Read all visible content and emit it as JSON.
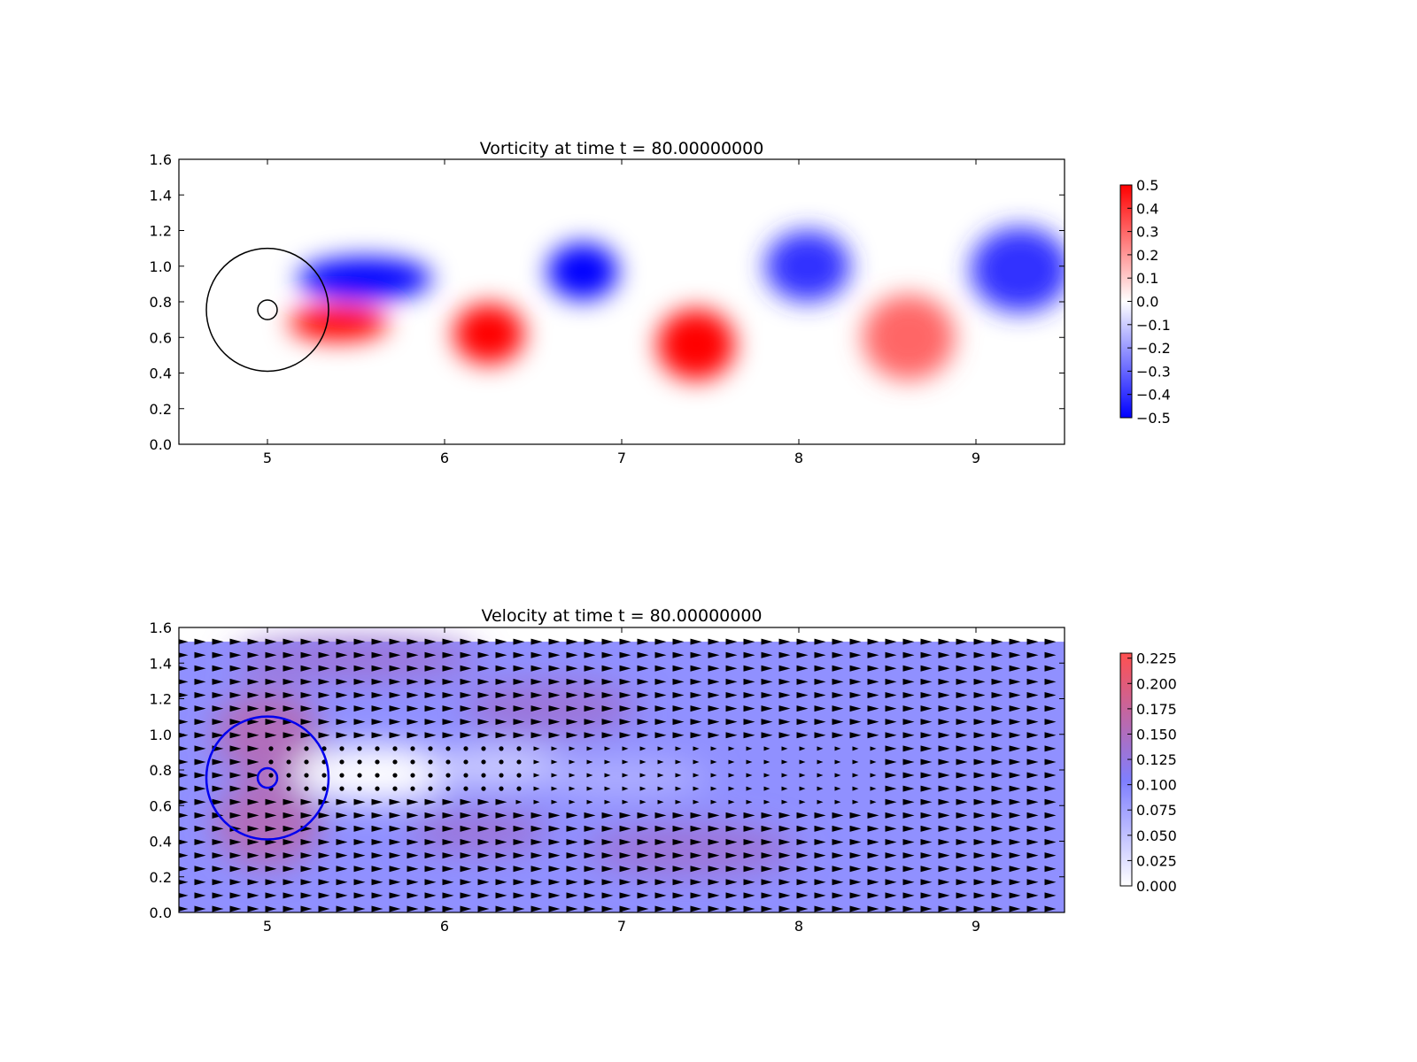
{
  "chart_data": [
    {
      "type": "heatmap",
      "title": "Vorticity at time t =    80.00000000",
      "xlim": [
        4.5,
        9.5
      ],
      "ylim": [
        0.0,
        1.6
      ],
      "xticks": [
        5,
        6,
        7,
        8,
        9
      ],
      "xtick_labels": [
        "5",
        "6",
        "7",
        "8",
        "9"
      ],
      "yticks": [
        0.0,
        0.2,
        0.4,
        0.6,
        0.8,
        1.0,
        1.2,
        1.4,
        1.6
      ],
      "ytick_labels": [
        "0.0",
        "0.2",
        "0.4",
        "0.6",
        "0.8",
        "1.0",
        "1.2",
        "1.4",
        "1.6"
      ],
      "colormap": [
        "#0000ff",
        "#ffffff",
        "#ff0000"
      ],
      "color_range": [
        -0.5,
        0.5
      ],
      "colorbar_ticks": [
        0.5,
        0.4,
        0.3,
        0.2,
        0.1,
        0.0,
        -0.1,
        -0.2,
        -0.3,
        -0.4,
        -0.5
      ],
      "colorbar_labels": [
        "0.5",
        "0.4",
        "0.3",
        "0.2",
        "0.1",
        "0.0",
        "−0.1",
        "−0.2",
        "−0.3",
        "−0.4",
        "−0.5"
      ],
      "vortices": [
        {
          "x": 5.55,
          "y": 0.93,
          "rx": 0.38,
          "ry": 0.12,
          "value": -0.6
        },
        {
          "x": 5.4,
          "y": 0.68,
          "rx": 0.28,
          "ry": 0.1,
          "value": 0.6
        },
        {
          "x": 6.78,
          "y": 0.97,
          "rx": 0.2,
          "ry": 0.16,
          "value": -0.6
        },
        {
          "x": 6.25,
          "y": 0.62,
          "rx": 0.2,
          "ry": 0.17,
          "value": 0.6
        },
        {
          "x": 7.42,
          "y": 0.56,
          "rx": 0.22,
          "ry": 0.2,
          "value": 0.5
        },
        {
          "x": 8.05,
          "y": 1.0,
          "rx": 0.24,
          "ry": 0.2,
          "value": -0.4
        },
        {
          "x": 8.62,
          "y": 0.6,
          "rx": 0.26,
          "ry": 0.24,
          "value": 0.3
        },
        {
          "x": 9.25,
          "y": 0.98,
          "rx": 0.28,
          "ry": 0.24,
          "value": -0.4
        }
      ],
      "circles": [
        {
          "x": 5.0,
          "y": 0.755,
          "r": 0.345,
          "color": "#000000"
        },
        {
          "x": 5.0,
          "y": 0.755,
          "r": 0.055,
          "color": "#000000"
        }
      ]
    },
    {
      "type": "heatmap",
      "title": "Velocity at time t =    80.00000000",
      "xlim": [
        4.5,
        9.5
      ],
      "ylim": [
        0.0,
        1.6
      ],
      "field_ylim": [
        0.0,
        1.52
      ],
      "xticks": [
        5,
        6,
        7,
        8,
        9
      ],
      "xtick_labels": [
        "5",
        "6",
        "7",
        "8",
        "9"
      ],
      "yticks": [
        0.0,
        0.2,
        0.4,
        0.6,
        0.8,
        1.0,
        1.2,
        1.4,
        1.6
      ],
      "ytick_labels": [
        "0.0",
        "0.2",
        "0.4",
        "0.6",
        "0.8",
        "1.0",
        "1.2",
        "1.4",
        "1.6"
      ],
      "colormap": [
        "#ffffff",
        "#7f7fff",
        "#ff5050"
      ],
      "color_range": [
        0.0,
        0.23
      ],
      "background_value": 0.1,
      "colorbar_ticks": [
        0.225,
        0.2,
        0.175,
        0.15,
        0.125,
        0.1,
        0.075,
        0.05,
        0.025,
        0.0
      ],
      "colorbar_labels": [
        "0.225",
        "0.200",
        "0.175",
        "0.150",
        "0.125",
        "0.100",
        "0.075",
        "0.050",
        "0.025",
        "0.000"
      ],
      "regions": [
        {
          "x": 5.0,
          "y": 1.0,
          "rx": 0.3,
          "ry": 0.25,
          "value": 0.16
        },
        {
          "x": 5.0,
          "y": 0.5,
          "rx": 0.3,
          "ry": 0.25,
          "value": 0.16
        },
        {
          "x": 5.5,
          "y": 1.42,
          "rx": 0.7,
          "ry": 0.12,
          "value": 0.14
        },
        {
          "x": 6.6,
          "y": 1.15,
          "rx": 0.5,
          "ry": 0.15,
          "value": 0.14
        },
        {
          "x": 7.4,
          "y": 0.35,
          "rx": 0.6,
          "ry": 0.15,
          "value": 0.14
        },
        {
          "x": 6.2,
          "y": 0.45,
          "rx": 0.4,
          "ry": 0.12,
          "value": 0.14
        },
        {
          "x": 5.6,
          "y": 0.78,
          "rx": 0.45,
          "ry": 0.16,
          "value": 0.0
        },
        {
          "x": 6.3,
          "y": 0.82,
          "rx": 0.4,
          "ry": 0.1,
          "value": 0.04
        },
        {
          "x": 7.0,
          "y": 0.76,
          "rx": 0.5,
          "ry": 0.1,
          "value": 0.07
        }
      ],
      "quiver": {
        "x_start": 4.52,
        "x_step": 0.1,
        "y_start": 0.02,
        "y_step": 0.075,
        "wake": {
          "x0": 5.0,
          "x1": 6.45,
          "y0": 0.62,
          "y1": 0.94
        }
      },
      "circles": [
        {
          "x": 5.0,
          "y": 0.755,
          "r": 0.345,
          "color": "#0000ee"
        },
        {
          "x": 5.0,
          "y": 0.755,
          "r": 0.055,
          "color": "#0000ee"
        }
      ]
    }
  ]
}
